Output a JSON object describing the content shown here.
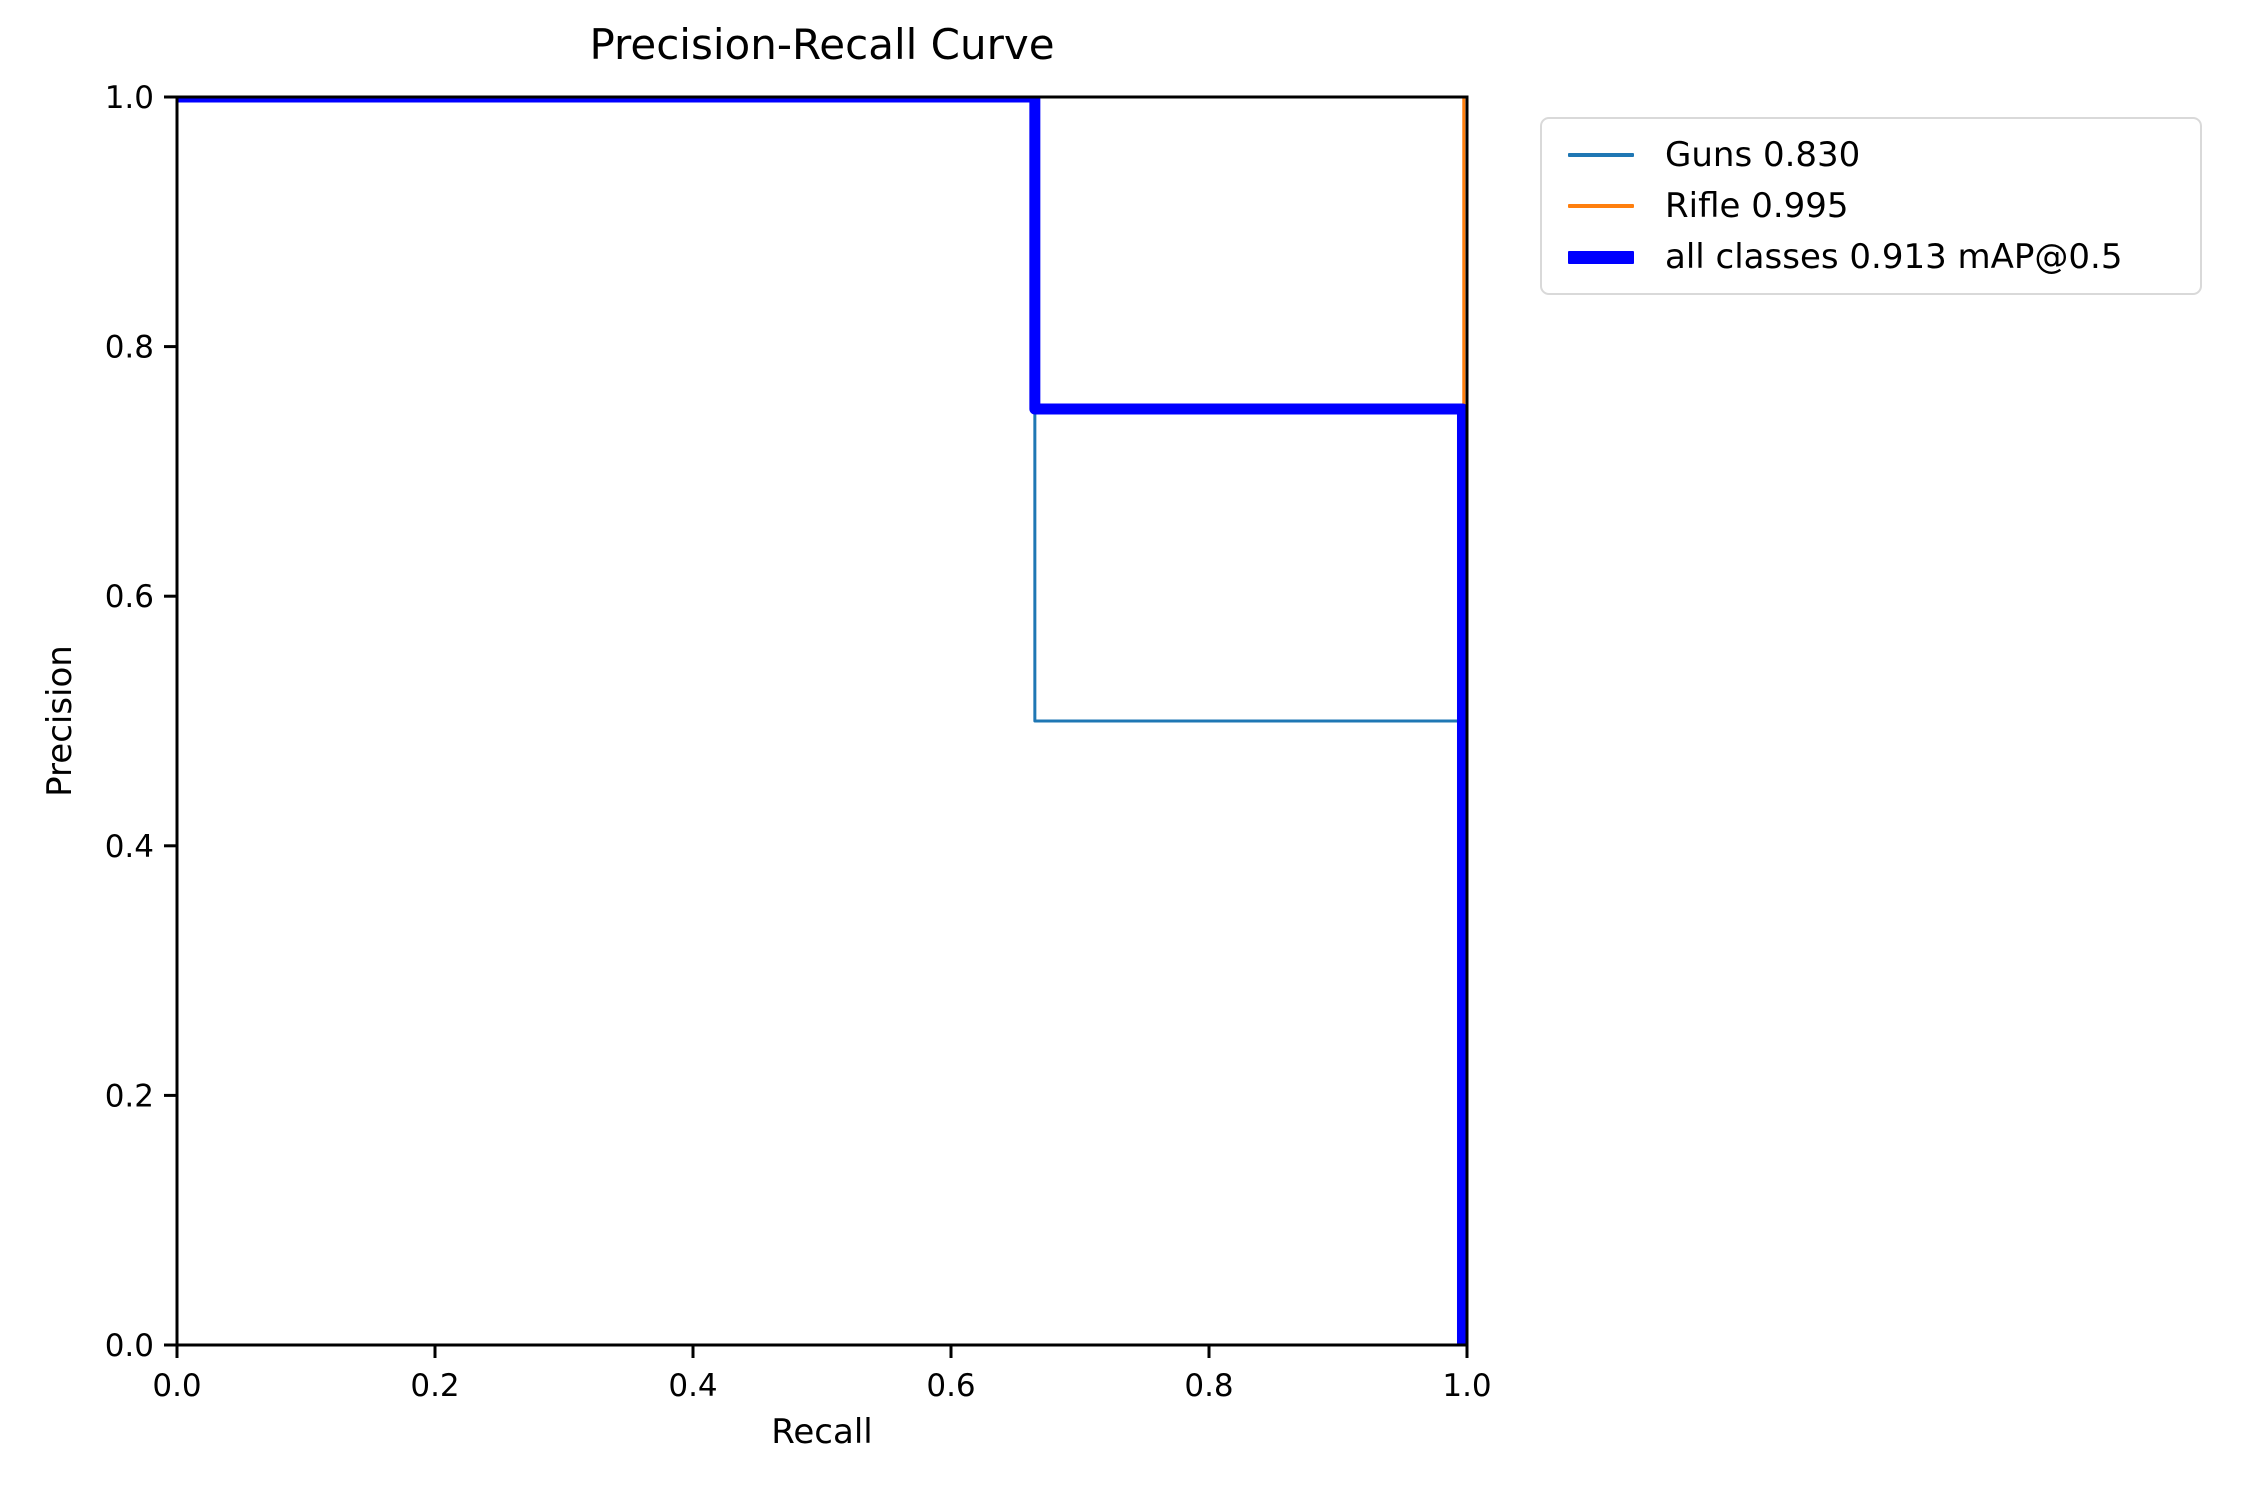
{
  "figure": {
    "background": "#ffffff",
    "axis_color": "#000000"
  },
  "chart_data": {
    "type": "line",
    "subtype": "step-precision-recall-curve",
    "title": "Precision-Recall Curve",
    "xlabel": "Recall",
    "ylabel": "Precision",
    "xlim": [
      0.0,
      1.0
    ],
    "ylim": [
      0.0,
      1.0
    ],
    "grid": false,
    "legend_position": "upper-right-outside",
    "x_ticks": [
      0.0,
      0.2,
      0.4,
      0.6,
      0.8,
      1.0
    ],
    "x_tick_labels": [
      "0.0",
      "0.2",
      "0.4",
      "0.6",
      "0.8",
      "1.0"
    ],
    "y_ticks": [
      0.0,
      0.2,
      0.4,
      0.6,
      0.8,
      1.0
    ],
    "y_tick_labels": [
      "0.0",
      "0.2",
      "0.4",
      "0.6",
      "0.8",
      "1.0"
    ],
    "series": [
      {
        "name": "Guns",
        "legend_label": "Guns 0.830",
        "ap": 0.83,
        "color": "#1f77b4",
        "linewidth": 3,
        "legend_linewidth": 4,
        "points": [
          [
            0.0,
            1.0
          ],
          [
            0.665,
            1.0
          ],
          [
            0.665,
            0.5
          ],
          [
            1.0,
            0.5
          ],
          [
            1.0,
            0.0
          ]
        ]
      },
      {
        "name": "Rifle",
        "legend_label": "Rifle 0.995",
        "ap": 0.995,
        "color": "#ff7f0e",
        "linewidth": 3,
        "legend_linewidth": 4,
        "points": [
          [
            0.0,
            1.0
          ],
          [
            0.9975,
            1.0
          ],
          [
            0.9975,
            0.0
          ]
        ]
      },
      {
        "name": "all classes",
        "legend_label": "all classes 0.913 mAP@0.5",
        "map_at_0_5": 0.913,
        "color": "#0000ff",
        "linewidth": 11,
        "legend_linewidth": 13,
        "points": [
          [
            0.0,
            1.0
          ],
          [
            0.665,
            1.0
          ],
          [
            0.665,
            0.75
          ],
          [
            0.9965,
            0.75
          ],
          [
            0.9965,
            0.0
          ]
        ]
      }
    ]
  }
}
